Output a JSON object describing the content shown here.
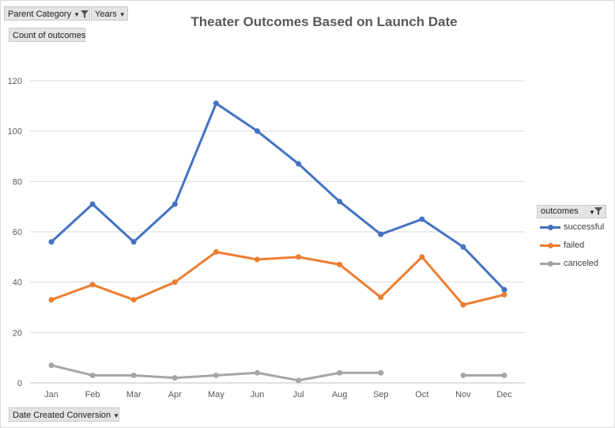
{
  "pivot": {
    "filter_field_1": "Parent Category",
    "filter_field_2": "Years",
    "values_field": "Count of outcomes",
    "axis_field": "Date Created Conversion",
    "legend_field": "outcomes"
  },
  "icons": {
    "dropdown": "dropdown-arrow-icon",
    "filter": "filter-funnel-icon"
  },
  "chart_data": {
    "type": "line",
    "title": "Theater Outcomes Based on Launch Date",
    "xlabel": "",
    "ylabel": "",
    "categories": [
      "Jan",
      "Feb",
      "Mar",
      "Apr",
      "May",
      "Jun",
      "Jul",
      "Aug",
      "Sep",
      "Oct",
      "Nov",
      "Dec"
    ],
    "ylim": [
      0,
      120
    ],
    "yticks": [
      0,
      20,
      40,
      60,
      80,
      100,
      120
    ],
    "grid": "horizontal",
    "legend_position": "right",
    "series": [
      {
        "name": "successful",
        "color": "#4472c4",
        "values": [
          56,
          71,
          56,
          71,
          111,
          100,
          87,
          72,
          59,
          65,
          54,
          37
        ]
      },
      {
        "name": "failed",
        "color": "#ed7d31",
        "values": [
          33,
          39,
          33,
          40,
          52,
          49,
          50,
          47,
          34,
          50,
          31,
          35
        ]
      },
      {
        "name": "canceled",
        "color": "#a5a5a5",
        "values": [
          7,
          3,
          3,
          2,
          3,
          4,
          1,
          4,
          4,
          null,
          3,
          3
        ]
      }
    ]
  }
}
